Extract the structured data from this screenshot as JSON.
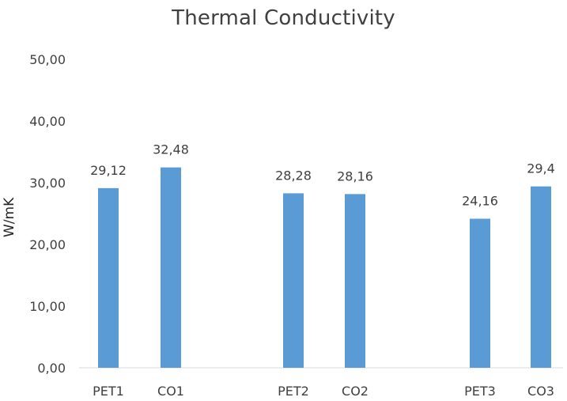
{
  "chart_data": {
    "type": "bar",
    "title": "Thermal Conductivity",
    "xlabel": "",
    "ylabel": "W/mK",
    "ylim": [
      0,
      50
    ],
    "yticks": [
      "0,00",
      "10,00",
      "20,00",
      "30,00",
      "40,00",
      "50,00"
    ],
    "grid": false,
    "categories": [
      "PET1",
      "CO1",
      "PET2",
      "CO2",
      "PET3",
      "CO3"
    ],
    "values": [
      29.12,
      32.48,
      28.28,
      28.16,
      24.16,
      29.4
    ],
    "data_labels": [
      "29,12",
      "32,48",
      "28,28",
      "28,16",
      "24,16",
      "29,4"
    ],
    "colors": {
      "bar": "#5b9bd5",
      "axis": "#d9d9d9",
      "text": "#404040"
    }
  }
}
